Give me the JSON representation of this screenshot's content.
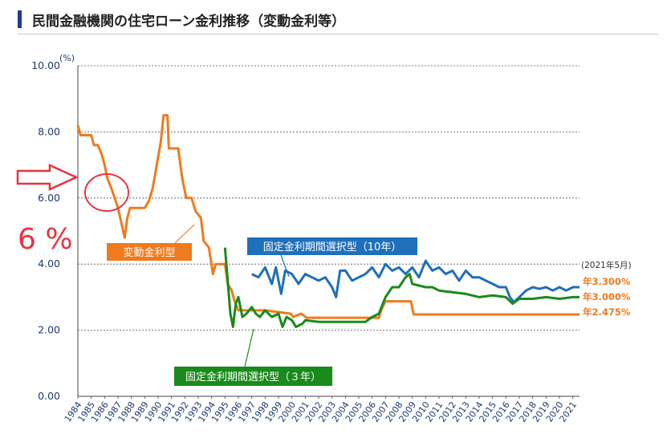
{
  "page_title": "民間金融機関の住宅ローン金利推移（変動金利等）",
  "colors": {
    "variable": "#f07a1e",
    "fixed10": "#1f6fba",
    "fixed3": "#1a8a1a",
    "axis_text": "#1f3a6e",
    "annotation_red": "#e8333f"
  },
  "annotation": {
    "text": "6 %",
    "arrow_icon": "right-arrow-icon",
    "circle_icon": "highlight-circle-icon"
  },
  "chart_data": {
    "type": "line",
    "ylabel": "(%)",
    "ylim": [
      0,
      10
    ],
    "xlim": [
      1984,
      2021.5
    ],
    "yticks": [
      0,
      2,
      4,
      6,
      8,
      10
    ],
    "ytick_labels": [
      "0.00",
      "2.00",
      "4.00",
      "6.00",
      "8.00",
      "10.00"
    ],
    "xtick_labels": [
      "1984",
      "1985",
      "1986",
      "1987",
      "1988",
      "1989",
      "1990",
      "1991",
      "1992",
      "1993",
      "1994",
      "1995",
      "1996",
      "1997",
      "1998",
      "1999",
      "2000",
      "2001",
      "2002",
      "2003",
      "2004",
      "2005",
      "2006",
      "2007",
      "2008",
      "2009",
      "2010",
      "2011",
      "2012",
      "2013",
      "2014",
      "2015",
      "2016",
      "2017",
      "2018",
      "2019",
      "2020",
      "2021"
    ],
    "grid": true,
    "date_note": "(2021年5月)",
    "series": [
      {
        "name": "変動金利型",
        "end_label": "年2.475%",
        "points": [
          [
            1984,
            8.2
          ],
          [
            1984.2,
            7.9
          ],
          [
            1985,
            7.9
          ],
          [
            1985.2,
            7.6
          ],
          [
            1985.5,
            7.6
          ],
          [
            1985.8,
            7.3
          ],
          [
            1986,
            7.0
          ],
          [
            1986.2,
            6.6
          ],
          [
            1986.5,
            6.3
          ],
          [
            1987,
            5.7
          ],
          [
            1987.5,
            4.8
          ],
          [
            1987.7,
            5.4
          ],
          [
            1987.9,
            5.7
          ],
          [
            1988.5,
            5.7
          ],
          [
            1989,
            5.7
          ],
          [
            1989.3,
            5.9
          ],
          [
            1989.6,
            6.3
          ],
          [
            1989.9,
            7.0
          ],
          [
            1990.2,
            7.7
          ],
          [
            1990.4,
            8.5
          ],
          [
            1990.7,
            8.5
          ],
          [
            1990.8,
            7.5
          ],
          [
            1991.5,
            7.5
          ],
          [
            1991.8,
            6.6
          ],
          [
            1992.1,
            6.0
          ],
          [
            1992.5,
            6.0
          ],
          [
            1992.8,
            5.6
          ],
          [
            1993.2,
            5.4
          ],
          [
            1993.4,
            4.7
          ],
          [
            1993.8,
            4.5
          ],
          [
            1994.1,
            3.7
          ],
          [
            1994.3,
            4.0
          ],
          [
            1995,
            4.0
          ],
          [
            1995.2,
            3.4
          ],
          [
            1995.5,
            3.2
          ],
          [
            1995.7,
            2.9
          ],
          [
            1996,
            2.6
          ],
          [
            1998,
            2.6
          ],
          [
            1999.9,
            2.5
          ],
          [
            2000.1,
            2.4
          ],
          [
            2000.7,
            2.5
          ],
          [
            2001.1,
            2.375
          ],
          [
            2006.5,
            2.375
          ],
          [
            2006.7,
            2.625
          ],
          [
            2007,
            2.875
          ],
          [
            2008.9,
            2.875
          ],
          [
            2009.1,
            2.475
          ],
          [
            2021.5,
            2.475
          ]
        ]
      },
      {
        "name": "固定金利期間選択型（10年）",
        "end_label": "年3.300%",
        "points": [
          [
            1997,
            3.7
          ],
          [
            1997.5,
            3.6
          ],
          [
            1998,
            3.9
          ],
          [
            1998.5,
            3.4
          ],
          [
            1998.8,
            3.9
          ],
          [
            1999.2,
            3.1
          ],
          [
            1999.5,
            3.8
          ],
          [
            2000,
            3.7
          ],
          [
            2000.5,
            3.4
          ],
          [
            2001,
            3.7
          ],
          [
            2001.5,
            3.6
          ],
          [
            2002,
            3.5
          ],
          [
            2002.5,
            3.6
          ],
          [
            2003,
            3.3
          ],
          [
            2003.3,
            3.0
          ],
          [
            2003.6,
            3.8
          ],
          [
            2004,
            3.8
          ],
          [
            2004.5,
            3.5
          ],
          [
            2005,
            3.6
          ],
          [
            2005.5,
            3.7
          ],
          [
            2006,
            3.9
          ],
          [
            2006.5,
            3.6
          ],
          [
            2007,
            4.0
          ],
          [
            2007.5,
            3.8
          ],
          [
            2008,
            3.9
          ],
          [
            2008.5,
            3.7
          ],
          [
            2009,
            3.9
          ],
          [
            2009.5,
            3.6
          ],
          [
            2010,
            4.1
          ],
          [
            2010.5,
            3.8
          ],
          [
            2011,
            3.9
          ],
          [
            2011.5,
            3.7
          ],
          [
            2012,
            3.8
          ],
          [
            2012.5,
            3.5
          ],
          [
            2013,
            3.8
          ],
          [
            2013.5,
            3.6
          ],
          [
            2014,
            3.6
          ],
          [
            2014.5,
            3.5
          ],
          [
            2015,
            3.4
          ],
          [
            2015.5,
            3.3
          ],
          [
            2016,
            3.3
          ],
          [
            2016.3,
            3.0
          ],
          [
            2016.6,
            2.85
          ],
          [
            2017,
            3.0
          ],
          [
            2017.5,
            3.2
          ],
          [
            2018,
            3.3
          ],
          [
            2018.5,
            3.25
          ],
          [
            2019,
            3.3
          ],
          [
            2019.5,
            3.2
          ],
          [
            2020,
            3.3
          ],
          [
            2020.5,
            3.2
          ],
          [
            2021,
            3.3
          ],
          [
            2021.5,
            3.3
          ]
        ]
      },
      {
        "name": "固定金利期間選択型（３年）",
        "end_label": "年3.000%",
        "points": [
          [
            1995,
            4.5
          ],
          [
            1995.2,
            3.5
          ],
          [
            1995.4,
            2.5
          ],
          [
            1995.6,
            2.1
          ],
          [
            1995.8,
            2.8
          ],
          [
            1996,
            3.0
          ],
          [
            1996.3,
            2.4
          ],
          [
            1996.6,
            2.5
          ],
          [
            1997,
            2.7
          ],
          [
            1997.3,
            2.5
          ],
          [
            1997.6,
            2.4
          ],
          [
            1998,
            2.6
          ],
          [
            1998.5,
            2.4
          ],
          [
            1999,
            2.5
          ],
          [
            1999.3,
            2.1
          ],
          [
            1999.6,
            2.4
          ],
          [
            2000,
            2.3
          ],
          [
            2000.3,
            2.1
          ],
          [
            2000.8,
            2.2
          ],
          [
            2001,
            2.3
          ],
          [
            2002,
            2.25
          ],
          [
            2005,
            2.25
          ],
          [
            2005.5,
            2.25
          ],
          [
            2006,
            2.4
          ],
          [
            2006.5,
            2.5
          ],
          [
            2007,
            3.0
          ],
          [
            2007.5,
            3.3
          ],
          [
            2008,
            3.3
          ],
          [
            2008.5,
            3.6
          ],
          [
            2008.8,
            3.7
          ],
          [
            2009,
            3.4
          ],
          [
            2010,
            3.3
          ],
          [
            2010.5,
            3.3
          ],
          [
            2011,
            3.2
          ],
          [
            2012,
            3.15
          ],
          [
            2013,
            3.1
          ],
          [
            2014,
            3.0
          ],
          [
            2015,
            3.05
          ],
          [
            2016,
            3.0
          ],
          [
            2016.5,
            2.8
          ],
          [
            2017,
            2.95
          ],
          [
            2018,
            2.95
          ],
          [
            2019,
            3.0
          ],
          [
            2020,
            2.95
          ],
          [
            2021,
            3.0
          ],
          [
            2021.5,
            3.0
          ]
        ]
      }
    ],
    "series_labels": [
      {
        "series": 0,
        "text": "変動金利型"
      },
      {
        "series": 1,
        "text": "固定金利期間選択型（10年）"
      },
      {
        "series": 2,
        "text": "固定金利期間選択型（３年）"
      }
    ]
  }
}
